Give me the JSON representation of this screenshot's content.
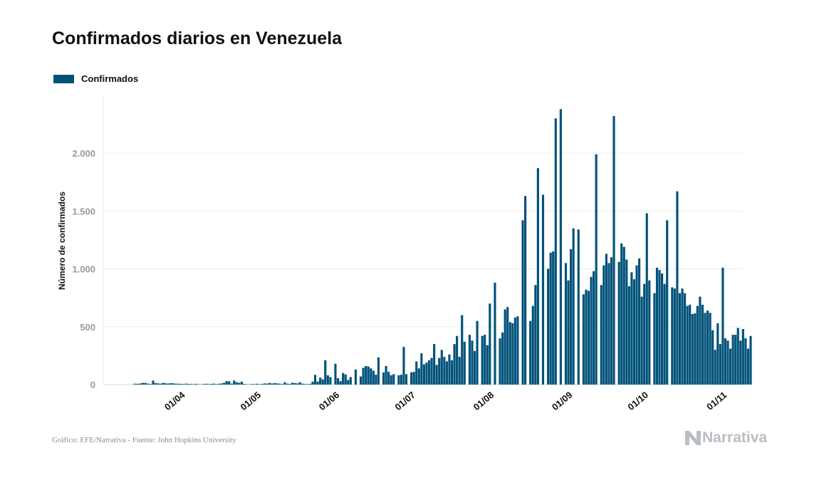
{
  "chart_data": {
    "type": "bar",
    "title": "Confirmados diarios en Venezuela",
    "ylabel": "Número de confirmados",
    "xlabel": "",
    "ylim": [
      0,
      2500
    ],
    "yticks": [
      {
        "value": 0,
        "label": "0"
      },
      {
        "value": 500,
        "label": "500"
      },
      {
        "value": 1000,
        "label": "1.000"
      },
      {
        "value": 1500,
        "label": "1.500"
      },
      {
        "value": 2000,
        "label": "2.000"
      }
    ],
    "xticks": [
      {
        "date": "2020-04-01",
        "label": "01/04"
      },
      {
        "date": "2020-05-01",
        "label": "01/05"
      },
      {
        "date": "2020-06-01",
        "label": "01/06"
      },
      {
        "date": "2020-07-01",
        "label": "01/07"
      },
      {
        "date": "2020-08-01",
        "label": "01/08"
      },
      {
        "date": "2020-09-01",
        "label": "01/09"
      },
      {
        "date": "2020-10-01",
        "label": "01/10"
      },
      {
        "date": "2020-11-01",
        "label": "01/11"
      }
    ],
    "grid": true,
    "legend_position": "top-left",
    "color": "#00527a",
    "series": [
      {
        "name": "Confirmados",
        "start_date": "2020-03-13",
        "values": [
          2,
          8,
          6,
          10,
          15,
          14,
          8,
          5,
          34,
          12,
          10,
          8,
          15,
          11,
          9,
          12,
          10,
          8,
          7,
          6,
          5,
          8,
          6,
          5,
          4,
          6,
          3,
          2,
          5,
          7,
          4,
          6,
          8,
          4,
          7,
          10,
          15,
          30,
          28,
          8,
          35,
          20,
          15,
          25,
          6,
          3,
          2,
          5,
          4,
          7,
          3,
          6,
          10,
          8,
          14,
          9,
          12,
          10,
          8,
          5,
          20,
          8,
          6,
          16,
          13,
          10,
          20,
          8,
          5,
          4,
          6,
          25,
          84,
          26,
          60,
          45,
          210,
          80,
          65,
          0,
          180,
          55,
          30,
          100,
          88,
          40,
          65,
          0,
          130,
          0,
          70,
          145,
          160,
          156,
          140,
          120,
          85,
          235,
          0,
          105,
          160,
          110,
          80,
          90,
          0,
          80,
          85,
          325,
          90,
          0,
          106,
          110,
          200,
          140,
          270,
          175,
          190,
          210,
          230,
          350,
          170,
          230,
          300,
          240,
          200,
          260,
          210,
          350,
          420,
          240,
          600,
          370,
          0,
          430,
          380,
          290,
          550,
          0,
          420,
          430,
          340,
          700,
          0,
          880,
          0,
          400,
          450,
          650,
          670,
          540,
          530,
          580,
          590,
          0,
          1420,
          1630,
          0,
          550,
          680,
          860,
          1870,
          0,
          1640,
          0,
          1000,
          1140,
          1150,
          2300,
          0,
          2380,
          0,
          1050,
          900,
          1170,
          1350,
          0,
          1340,
          0,
          780,
          820,
          810,
          930,
          980,
          1990,
          0,
          860,
          1030,
          1130,
          1050,
          1100,
          2320,
          0,
          1060,
          1220,
          1190,
          1080,
          850,
          970,
          910,
          1030,
          1090,
          760,
          870,
          1480,
          900,
          0,
          790,
          1010,
          990,
          960,
          870,
          1420,
          0,
          840,
          830,
          1670,
          790,
          830,
          790,
          680,
          690,
          610,
          615,
          680,
          760,
          690,
          620,
          640,
          620,
          470,
          300,
          530,
          350,
          1010,
          400,
          380,
          310,
          430,
          430,
          490,
          380,
          480,
          400,
          310,
          420
        ]
      }
    ]
  },
  "source_text": "Gráfico: EFE/Narrativa - Fuente: John Hopkins University",
  "brand": {
    "name": "Narrativa",
    "icon": "narrativa-logo-icon"
  }
}
